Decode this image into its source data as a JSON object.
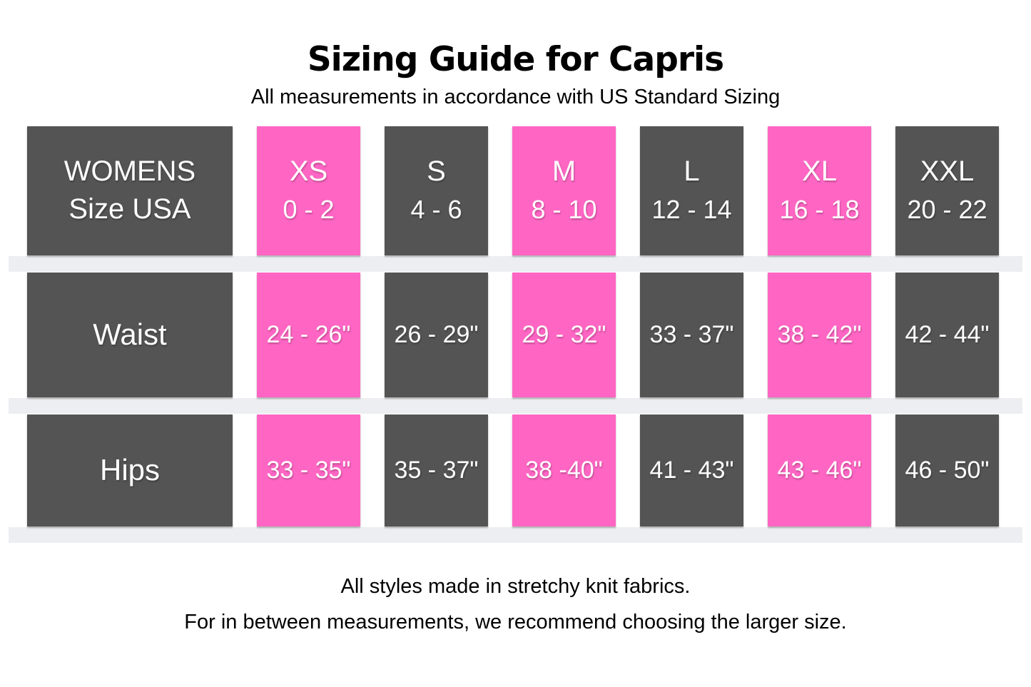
{
  "title": "Sizing Guide for Capris",
  "subtitle": "All measurements in accordance with US Standard Sizing",
  "colors": {
    "background": "#FFFFFF",
    "page_text": "#000000",
    "cell_dark": "#545454",
    "cell_pink": "#FF66C4",
    "cell_text": "#FFFFFF",
    "separator": "#ECEEF1"
  },
  "table": {
    "corner": {
      "line1": "WOMENS",
      "line2": "Size USA"
    },
    "sizes": [
      {
        "name": "XS",
        "range": "0 - 2",
        "highlighted": true
      },
      {
        "name": "S",
        "range": "4 - 6",
        "highlighted": false
      },
      {
        "name": "M",
        "range": "8 - 10",
        "highlighted": true
      },
      {
        "name": "L",
        "range": "12 - 14",
        "highlighted": false
      },
      {
        "name": "XL",
        "range": "16 - 18",
        "highlighted": true
      },
      {
        "name": "XXL",
        "range": "20 - 22",
        "highlighted": false
      }
    ],
    "rows": [
      {
        "label": "Waist",
        "values": [
          "24 - 26\"",
          "26 - 29\"",
          "29 - 32\"",
          "33 - 37\"",
          "38 - 42\"",
          "42 - 44\""
        ]
      },
      {
        "label": "Hips",
        "values": [
          "33 - 35\"",
          "35 - 37\"",
          "38 -40\"",
          "41 - 43\"",
          "43 - 46\"",
          "46 - 50\""
        ]
      }
    ]
  },
  "footer": {
    "line1": "All styles made in stretchy knit fabrics.",
    "line2": "For in between measurements, we recommend choosing the larger size."
  },
  "chart_data": {
    "type": "table",
    "title": "Sizing Guide for Capris",
    "subtitle": "All measurements in accordance with US Standard Sizing",
    "columns": [
      "WOMENS Size USA",
      "XS 0 - 2",
      "S 4 - 6",
      "M 8 - 10",
      "L 12 - 14",
      "XL 16 - 18",
      "XXL 20 - 22"
    ],
    "rows": [
      [
        "Waist",
        "24 - 26\"",
        "26 - 29\"",
        "29 - 32\"",
        "33 - 37\"",
        "38 - 42\"",
        "42 - 44\""
      ],
      [
        "Hips",
        "33 - 35\"",
        "35 - 37\"",
        "38 -40\"",
        "41 - 43\"",
        "43 - 46\"",
        "46 - 50\""
      ]
    ],
    "highlighted_columns": [
      "XS",
      "M",
      "XL"
    ],
    "highlight_color": "#FF66C4",
    "base_cell_color": "#545454",
    "notes": [
      "All styles made in stretchy knit fabrics.",
      "For in between measurements, we recommend choosing the larger size."
    ]
  }
}
